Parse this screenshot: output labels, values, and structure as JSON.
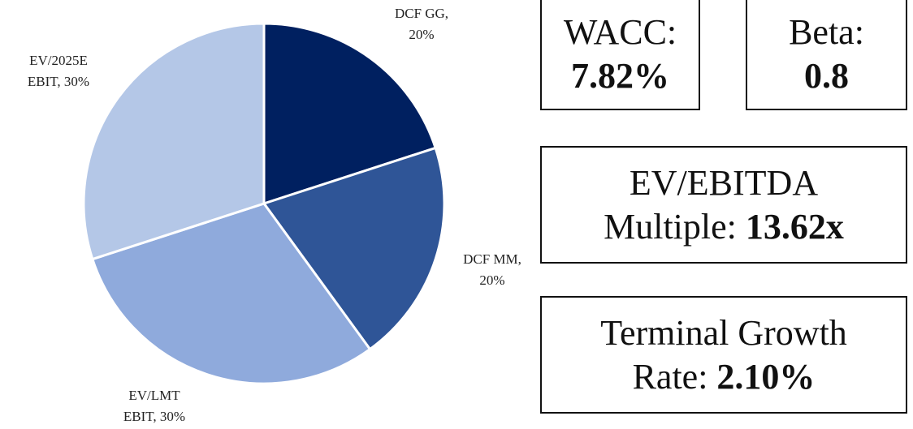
{
  "chart_data": {
    "type": "pie",
    "values": [
      20,
      20,
      30,
      30
    ],
    "data_labels": [
      [
        "DCF GG,",
        "20%"
      ],
      [
        "DCF MM,",
        "20%"
      ],
      [
        "EV/LMT",
        "EBIT, 30%"
      ],
      [
        "EV/2025E",
        "EBIT, 30%"
      ]
    ],
    "colors": [
      "#002060",
      "#2f5597",
      "#8faadc",
      "#b4c7e7"
    ]
  },
  "cards": [
    {
      "label": "WACC:",
      "value": "7.82%"
    },
    {
      "label": "Beta:",
      "value": "0.8"
    },
    {
      "title": "EV/EBITDA",
      "label": "Multiple:",
      "value": "13.62x"
    },
    {
      "title": "Terminal Growth",
      "label": "Rate:",
      "value": "2.10%"
    }
  ]
}
